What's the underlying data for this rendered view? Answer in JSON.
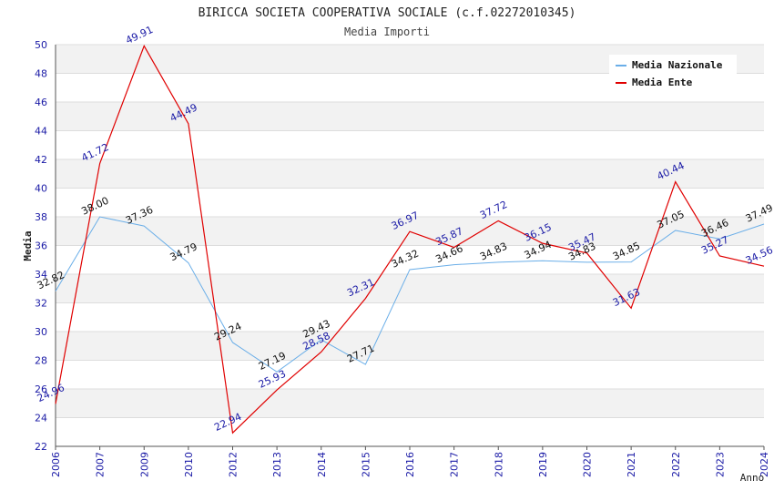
{
  "chart_data": {
    "type": "line",
    "title": "BIRICCA SOCIETA COOPERATIVA SOCIALE (c.f.02272010345)",
    "subtitle": "Media Importi",
    "xlabel": "Anno",
    "ylabel": "Media",
    "ylim": [
      22,
      50
    ],
    "yticks": [
      "22",
      "24",
      "26",
      "28",
      "30",
      "32",
      "34",
      "36",
      "38",
      "40",
      "42",
      "44",
      "46",
      "48",
      "50"
    ],
    "categories": [
      "2006",
      "2007",
      "2009",
      "2010",
      "2012",
      "2013",
      "2014",
      "2015",
      "2016",
      "2017",
      "2018",
      "2019",
      "2020",
      "2021",
      "2022",
      "2023",
      "2024"
    ],
    "grid": true,
    "legend_position": "top-right",
    "series": [
      {
        "name": "Media Nazionale",
        "color": "#6aaee8",
        "label_color": "#111111",
        "values": [
          32.82,
          38.0,
          37.36,
          34.79,
          29.24,
          27.19,
          29.43,
          27.71,
          34.32,
          34.66,
          34.83,
          34.94,
          34.83,
          34.85,
          37.05,
          36.46,
          37.49
        ],
        "labels": [
          "32.82",
          "38.00",
          "37.36",
          "34.79",
          "29.24",
          "27.19",
          "29.43",
          "27.71",
          "34.32",
          "34.66",
          "34.83",
          "34.94",
          "34.83",
          "34.85",
          "37.05",
          "36.46",
          "37.49"
        ]
      },
      {
        "name": "Media Ente",
        "color": "#e00000",
        "label_color": "#1a1aa6",
        "values": [
          24.96,
          41.72,
          49.91,
          44.49,
          22.94,
          25.93,
          28.58,
          32.31,
          36.97,
          35.87,
          37.72,
          36.15,
          35.47,
          31.63,
          40.44,
          35.27,
          34.56
        ],
        "labels": [
          "24.96",
          "41.72",
          "49.91",
          "44.49",
          "22.94",
          "25.93",
          "28.58",
          "32.31",
          "36.97",
          "35.87",
          "37.72",
          "36.15",
          "35.47",
          "31.63",
          "40.44",
          "35.27",
          "34.56"
        ]
      }
    ]
  }
}
